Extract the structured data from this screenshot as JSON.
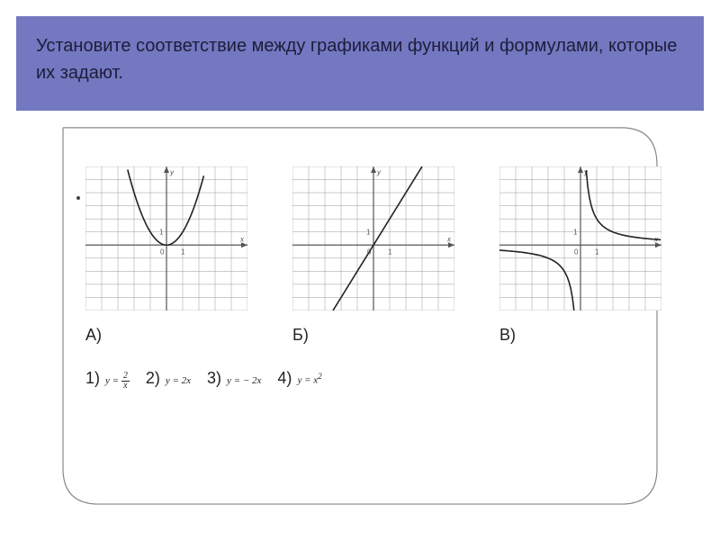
{
  "accent_color": "#7378c1",
  "header": {
    "title_bold": "Установите соответствие между",
    "title_rest": " графиками функций и формулами, которые их задают.",
    "text_color": "#1d1d3a"
  },
  "charts": {
    "grid_color": "#9a9a9a",
    "axis_color": "#555555",
    "curve_color": "#222222",
    "background": "#ffffff",
    "xrange": [
      -5,
      5
    ],
    "yrange": [
      -5,
      6
    ],
    "items": [
      {
        "label": "А)",
        "type": "parabola",
        "formula_idx": 4
      },
      {
        "label": "Б)",
        "type": "line2x",
        "formula_idx": 2
      },
      {
        "label": "В)",
        "type": "hyperbola",
        "formula_idx": 1
      }
    ]
  },
  "options": [
    {
      "num": "1)",
      "latex": "y = 2/x",
      "kind": "frac",
      "a": "2",
      "b": "x",
      "pre": "y = "
    },
    {
      "num": "2)",
      "latex": "y = 2x",
      "kind": "plain",
      "text": "y = 2x"
    },
    {
      "num": "3)",
      "latex": "y = -2x",
      "kind": "plain",
      "text": "y = − 2x"
    },
    {
      "num": "4)",
      "latex": "y = x^2",
      "kind": "sup",
      "text": "y = x",
      "sup": "2"
    }
  ]
}
